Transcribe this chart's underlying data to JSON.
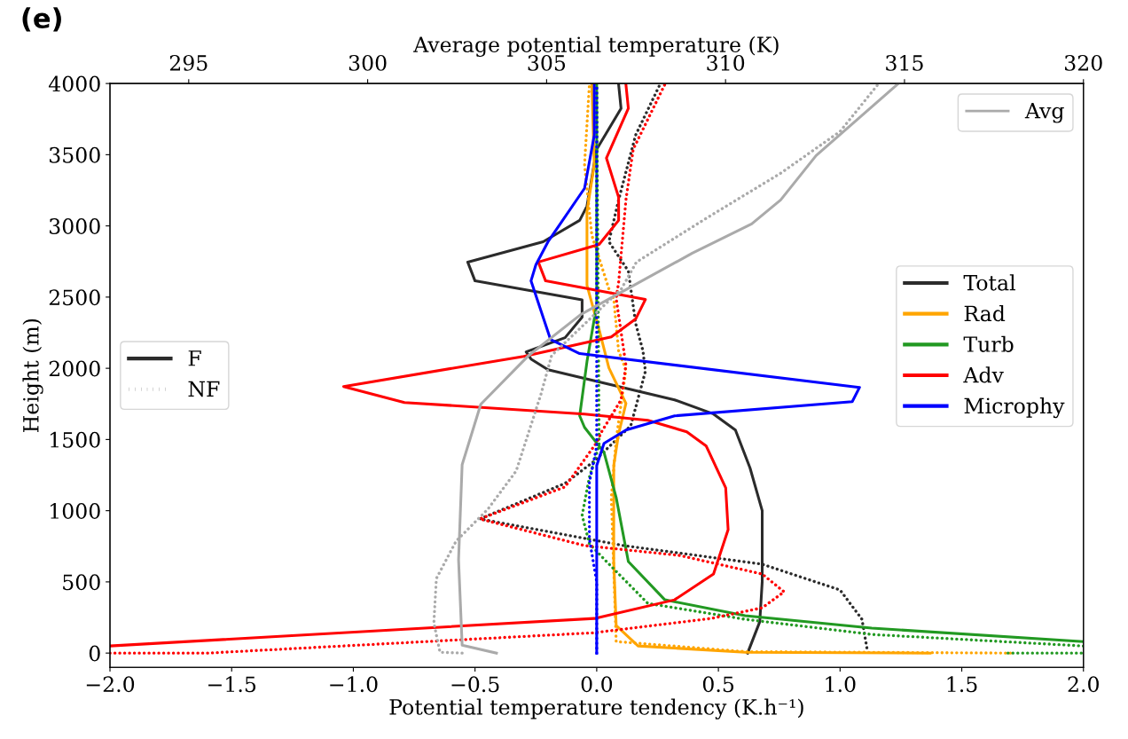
{
  "chart_data": {
    "type": "line",
    "xlabel": "Potential temperature tendency (K.h⁻¹)",
    "ylabel": "Height (m)",
    "x2label": "Average potential temperature (K)",
    "annotations": [
      "(e)",
      "F",
      "NF"
    ],
    "xlim": [
      -2.0,
      2.0
    ],
    "xticks": [
      {
        "value": -2.0,
        "label": "−2.0"
      },
      {
        "value": -1.5,
        "label": "−1.5"
      },
      {
        "value": -1.0,
        "label": "−1.0"
      },
      {
        "value": -0.5,
        "label": "−0.5"
      },
      {
        "value": 0.0,
        "label": "0.0"
      },
      {
        "value": 0.5,
        "label": "0.5"
      },
      {
        "value": 1.0,
        "label": "1.0"
      },
      {
        "value": 1.5,
        "label": "1.5"
      },
      {
        "value": 2.0,
        "label": "2.0"
      }
    ],
    "x2lim": [
      292.8,
      320
    ],
    "x2ticks": [
      295,
      300,
      305,
      310,
      315,
      320
    ],
    "ylim": [
      -100,
      4000
    ],
    "yticks": [
      0,
      500,
      1000,
      1500,
      2000,
      2500,
      3000,
      3500,
      4000
    ],
    "grid": false,
    "legend": "right",
    "series": [
      {
        "name": "Total",
        "color": "#2b2b2b",
        "line_style": "solid",
        "x": [
          0.62,
          0.67,
          0.68,
          0.68,
          0.63,
          0.57,
          0.48,
          0.32,
          -0.2,
          -0.27,
          -0.29,
          -0.13,
          -0.06,
          -0.06,
          -0.5,
          -0.53,
          -0.22,
          -0.07,
          -0.04,
          0.0,
          0.1,
          0.09
        ],
        "values": [
          0,
          220,
          500,
          1000,
          1300,
          1566,
          1679,
          1778,
          1990,
          2065,
          2115,
          2215,
          2359,
          2480,
          2614,
          2746,
          2889,
          3039,
          3139,
          3538,
          3825,
          3994
        ]
      },
      {
        "color": "#2b2b2b",
        "line_style": "dotted",
        "x": [
          1.11,
          1.09,
          1.0,
          0.68,
          0.11,
          -0.48,
          -0.13,
          -0.01,
          0.14,
          0.2,
          0.19,
          0.16,
          0.13,
          0.05,
          0.09,
          0.16,
          0.26
        ],
        "values": [
          37,
          237,
          443,
          624,
          755,
          942,
          1192,
          1348,
          1597,
          1978,
          2122,
          2315,
          2683,
          2889,
          3182,
          3638,
          3994
        ]
      },
      {
        "name": "Rad",
        "color": "#ffa500",
        "line_style": "solid",
        "x": [
          1.37,
          0.61,
          0.17,
          0.08,
          0.07,
          0.07,
          0.09,
          0.12,
          0.05,
          0.01,
          -0.04,
          -0.04,
          -0.01,
          -0.02
        ],
        "values": [
          0,
          6,
          50,
          193,
          643,
          1317,
          1541,
          1753,
          2003,
          2271,
          2583,
          3101,
          3432,
          3994
        ]
      },
      {
        "color": "#ffa500",
        "line_style": "dotted",
        "x": [
          1.7,
          0.61,
          0.08,
          0.06,
          0.08,
          0.12,
          0.09,
          0.07,
          0.05,
          -0.02,
          -0.05,
          -0.03
        ],
        "values": [
          0,
          10,
          81,
          1092,
          1500,
          1990,
          2122,
          2490,
          2558,
          2933,
          3432,
          3994
        ]
      },
      {
        "name": "Turb",
        "color": "#229922",
        "line_style": "solid",
        "x": [
          2.0,
          1.13,
          0.61,
          0.28,
          0.13,
          0.08,
          0.03,
          -0.05,
          -0.07,
          -0.04,
          0.0,
          0.0,
          0.0
        ],
        "values": [
          81,
          175,
          262,
          374,
          643,
          1092,
          1410,
          1585,
          1666,
          2047,
          2446,
          2808,
          3994
        ]
      },
      {
        "color": "#229922",
        "line_style": "dotted",
        "x": [
          1.69,
          2.0,
          null,
          2.0,
          1.13,
          0.61,
          0.21,
          0.04,
          -0.03,
          -0.06,
          -0.03,
          0.01,
          0.0
        ],
        "values": [
          0,
          0,
          null,
          50,
          131,
          237,
          349,
          643,
          768,
          967,
          1235,
          1460,
          3994
        ]
      },
      {
        "name": "Adv",
        "color": "#ff0000",
        "line_style": "solid",
        "x": [
          -2.0,
          -0.01,
          0.32,
          0.48,
          0.54,
          0.53,
          0.45,
          0.37,
          0.21,
          -0.05,
          -0.79,
          -1.04,
          -0.3,
          0.06,
          0.16,
          0.2,
          -0.21,
          -0.24,
          0.01,
          0.09,
          0.09,
          0.04,
          0.13,
          0.12
        ],
        "values": [
          50,
          243,
          374,
          555,
          867,
          1161,
          1454,
          1554,
          1635,
          1679,
          1760,
          1872,
          2084,
          2221,
          2346,
          2483,
          2614,
          2746,
          2870,
          3039,
          3201,
          3476,
          3825,
          3994
        ]
      },
      {
        "color": "#ff0000",
        "line_style": "dotted",
        "x": [
          -2.0,
          -1.6,
          -0.01,
          0.47,
          0.68,
          0.77,
          0.68,
          0.34,
          -0.05,
          -0.48,
          -0.13,
          0.0,
          0.02,
          0.1,
          0.12,
          0.08,
          0.09,
          0.12,
          0.15,
          0.28
        ],
        "values": [
          0,
          0,
          143,
          243,
          318,
          430,
          555,
          686,
          755,
          942,
          1167,
          1479,
          1554,
          1778,
          2022,
          2490,
          2602,
          3182,
          3538,
          3994
        ]
      },
      {
        "name": "Microphy",
        "color": "#0000ff",
        "line_style": "solid",
        "x": [
          0.0,
          0.0,
          0.03,
          0.12,
          0.32,
          1.05,
          1.08,
          -0.07,
          -0.19,
          -0.27,
          -0.25,
          -0.2,
          -0.05,
          -0.01,
          -0.01
        ],
        "values": [
          0,
          1317,
          1473,
          1566,
          1666,
          1766,
          1866,
          2103,
          2203,
          2614,
          2727,
          2889,
          3264,
          3638,
          3994
        ]
      },
      {
        "color": "#0000ff",
        "line_style": "dotted",
        "x": [
          0.0,
          0.0,
          -0.03,
          -0.03,
          0.0,
          0.0
        ],
        "values": [
          0,
          500,
          800,
          1200,
          1450,
          3994
        ]
      },
      {
        "name": "Avg",
        "color": "#aaaaaa",
        "line_style": "solid",
        "axis": "x2",
        "x": [
          303.6,
          302.64,
          302.54,
          302.64,
          303.16,
          304.5,
          305.95,
          309.07,
          310.73,
          311.54,
          312.53,
          314.83
        ],
        "values": [
          0,
          56,
          655,
          1323,
          1747,
          2090,
          2377,
          2808,
          3014,
          3182,
          3494,
          4000
        ]
      },
      {
        "color": "#aaaaaa",
        "line_style": "dotted",
        "axis": "x2",
        "x": [
          302.64,
          302.02,
          301.85,
          301.92,
          302.47,
          303.36,
          304.15,
          304.84,
          305.14,
          307.09,
          307.51,
          309.49,
          311.54,
          313.2,
          314.26
        ],
        "values": [
          0,
          6,
          212,
          524,
          786,
          1011,
          1279,
          1816,
          2090,
          2558,
          2746,
          3058,
          3370,
          3663,
          3994
        ]
      }
    ]
  }
}
